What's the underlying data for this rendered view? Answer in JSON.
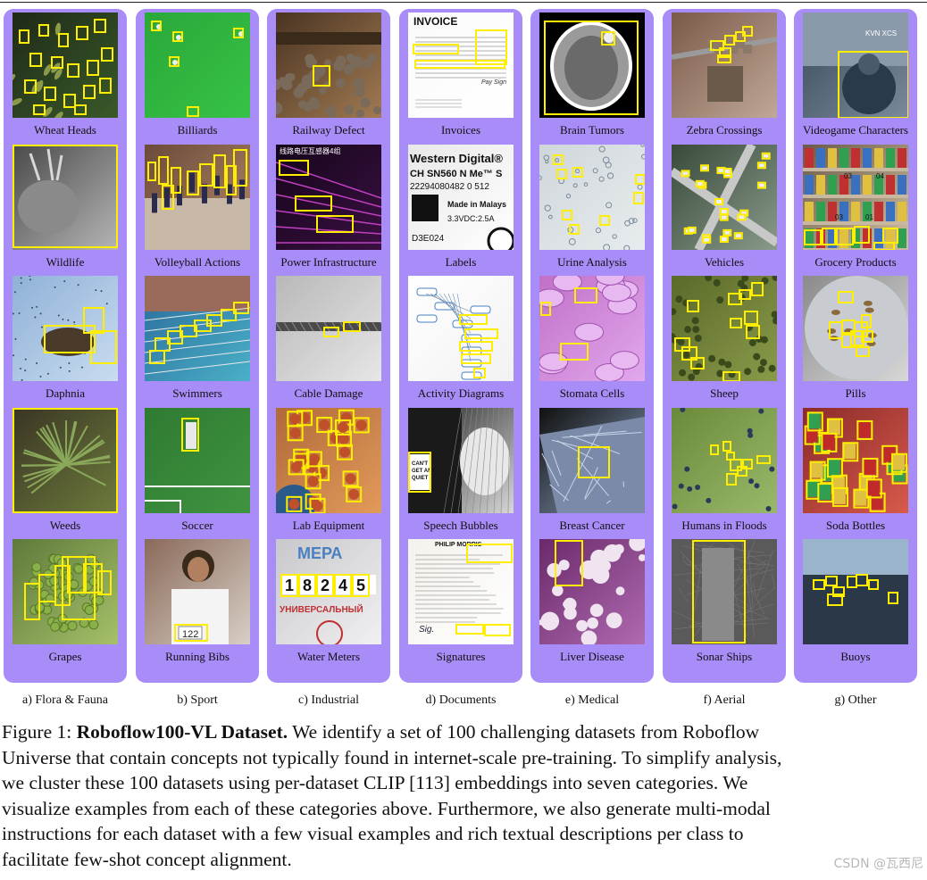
{
  "colors": {
    "panel": "#a88cf7",
    "box": "#ffee00",
    "caption_text": "#111111"
  },
  "categories": [
    {
      "label": "a) Flora & Fauna",
      "items": [
        {
          "name": "Wheat Heads",
          "bg": [
            "#1e2a18",
            "#3a5a2a"
          ],
          "icon": "wheat-heads-image"
        },
        {
          "name": "Wildlife",
          "bg": [
            "#4a4a4a",
            "#b5b5b5"
          ],
          "icon": "wildlife-image"
        },
        {
          "name": "Daphnia",
          "bg": [
            "#8fb1d8",
            "#c9dcef"
          ],
          "icon": "daphnia-image"
        },
        {
          "name": "Weeds",
          "bg": [
            "#3a3524",
            "#6d7a3c"
          ],
          "icon": "weeds-image"
        },
        {
          "name": "Grapes",
          "bg": [
            "#5e7a3a",
            "#a6c06a"
          ],
          "icon": "grapes-image"
        }
      ]
    },
    {
      "label": "b) Sport",
      "items": [
        {
          "name": "Billiards",
          "bg": [
            "#2aa83a",
            "#37c246"
          ],
          "icon": "billiards-image"
        },
        {
          "name": "Volleyball Actions",
          "bg": [
            "#6a4a3a",
            "#b48a6a"
          ],
          "icon": "volleyball-image"
        },
        {
          "name": "Swimmers",
          "bg": [
            "#2a6a9a",
            "#4ab0c8"
          ],
          "icon": "swimmers-image"
        },
        {
          "name": "Soccer",
          "bg": [
            "#2f7a32",
            "#3f9440"
          ],
          "icon": "soccer-image"
        },
        {
          "name": "Running Bibs",
          "bg": [
            "#8a6a5a",
            "#d8cfc6"
          ],
          "icon": "running-bibs-image"
        }
      ]
    },
    {
      "label": "c) Industrial",
      "items": [
        {
          "name": "Railway Defect",
          "bg": [
            "#4a3422",
            "#a07a52"
          ],
          "icon": "railway-image"
        },
        {
          "name": "Power Infrastructure",
          "bg": [
            "#15051a",
            "#3a1042"
          ],
          "icon": "power-image"
        },
        {
          "name": "Cable Damage",
          "bg": [
            "#b8b8b8",
            "#e6e6e6"
          ],
          "icon": "cable-image"
        },
        {
          "name": "Lab Equipment",
          "bg": [
            "#b06a3a",
            "#e29a5a"
          ],
          "icon": "lab-image"
        },
        {
          "name": "Water Meters",
          "bg": [
            "#c8c8cc",
            "#f0f0f2"
          ],
          "icon": "water-meter-image"
        }
      ]
    },
    {
      "label": "d) Documents",
      "items": [
        {
          "name": "Invoices",
          "bg": [
            "#fafafa",
            "#ffffff"
          ],
          "icon": "invoice-image"
        },
        {
          "name": "Labels",
          "bg": [
            "#e8e8e8",
            "#ffffff"
          ],
          "icon": "label-image"
        },
        {
          "name": "Activity Diagrams",
          "bg": [
            "#ffffff",
            "#f2f2f2"
          ],
          "icon": "activity-diagram-image"
        },
        {
          "name": "Speech Bubbles",
          "bg": [
            "#202020",
            "#d8d8d8"
          ],
          "icon": "speech-bubble-image"
        },
        {
          "name": "Signatures",
          "bg": [
            "#f4f2ec",
            "#ffffff"
          ],
          "icon": "signature-image"
        }
      ]
    },
    {
      "label": "e) Medical",
      "items": [
        {
          "name": "Brain Tumors",
          "bg": [
            "#000000",
            "#8a8a8a"
          ],
          "icon": "brain-scan-image"
        },
        {
          "name": "Urine Analysis",
          "bg": [
            "#cfd6da",
            "#e8ecee"
          ],
          "icon": "urine-image"
        },
        {
          "name": "Stomata Cells",
          "bg": [
            "#c070c8",
            "#e2a8ec"
          ],
          "icon": "stomata-image"
        },
        {
          "name": "Breast Cancer",
          "bg": [
            "#101010",
            "#8aa0c0"
          ],
          "icon": "breast-cancer-image"
        },
        {
          "name": "Liver Disease",
          "bg": [
            "#6a2a6a",
            "#b06ab0"
          ],
          "icon": "liver-image"
        }
      ]
    },
    {
      "label": "f) Aerial",
      "items": [
        {
          "name": "Zebra Crossings",
          "bg": [
            "#7a5a4a",
            "#c0a896"
          ],
          "icon": "zebra-crossing-image"
        },
        {
          "name": "Vehicles",
          "bg": [
            "#3a4a3a",
            "#8a9a8a"
          ],
          "icon": "vehicles-image"
        },
        {
          "name": "Sheep",
          "bg": [
            "#5a6a2a",
            "#8a9a4a"
          ],
          "icon": "sheep-image"
        },
        {
          "name": "Humans in Floods",
          "bg": [
            "#6a8a3a",
            "#9ab86a"
          ],
          "icon": "flood-image"
        },
        {
          "name": "Sonar Ships",
          "bg": [
            "#3a3a3a",
            "#9a9a9a"
          ],
          "icon": "sonar-image"
        }
      ]
    },
    {
      "label": "g) Other",
      "items": [
        {
          "name": "Videogame Characters",
          "bg": [
            "#3a4a5a",
            "#7a8a9a"
          ],
          "icon": "videogame-image",
          "overlay": "KVN XCS"
        },
        {
          "name": "Grocery Products",
          "bg": [
            "#6a5a4a",
            "#d0c0a0"
          ],
          "icon": "grocery-image"
        },
        {
          "name": "Pills",
          "bg": [
            "#8a8a8a",
            "#d8d8d8"
          ],
          "icon": "pills-image"
        },
        {
          "name": "Soda Bottles",
          "bg": [
            "#8a2a2a",
            "#d85a4a"
          ],
          "icon": "soda-image"
        },
        {
          "name": "Buoys",
          "bg": [
            "#2a3a4a",
            "#9ab0c8"
          ],
          "icon": "buoys-image"
        }
      ]
    }
  ],
  "thumb_text": {
    "invoice": "INVOICE",
    "labels_lines": [
      "Western Digital®",
      "CH SN560 N Me™ S",
      "22294080482 0 512",
      "Made in Malays",
      "3.3VDC:2.5A",
      "D3E024"
    ],
    "meter_brand": "МЕРА",
    "meter_digits": "18245",
    "meter_word": "УНИВЕРСАЛЬНЫЙ",
    "speech": "CAN'T GET ANY QUIET",
    "bib": "122",
    "signature_header": "PHILIP MORRIS"
  },
  "caption": {
    "line1_prefix": "Figure 1: ",
    "line1_bold": "Roboflow100-VL Dataset.",
    "line1_rest": " We identify a set of 100 challenging datasets from Roboflow",
    "lines": [
      "Universe that contain concepts not typically found in internet-scale pre-training. To simplify analysis,",
      "we cluster these 100 datasets using per-dataset CLIP [113] embeddings into seven categories. We",
      "visualize examples from each of these categories above. Furthermore, we also generate multi-modal",
      "instructions for each dataset with a few visual examples and rich textual descriptions per class to",
      "facilitate few-shot concept alignment."
    ]
  },
  "watermark": "CSDN @瓦西尼"
}
